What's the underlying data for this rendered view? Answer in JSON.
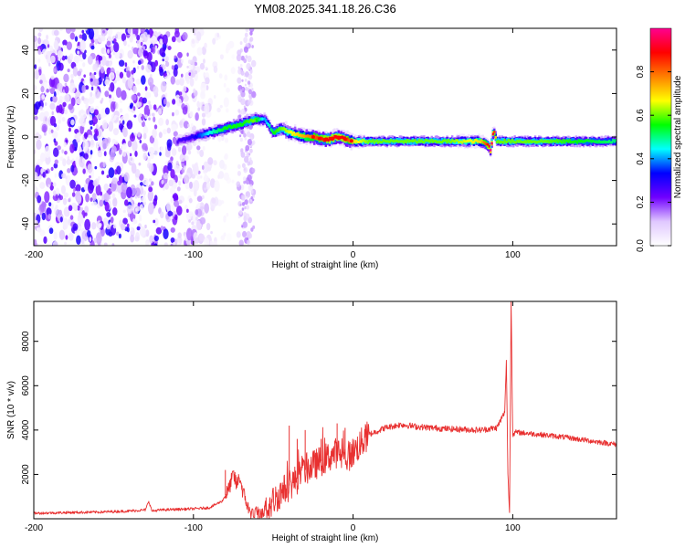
{
  "title": "YM08.2025.341.18.26.C36",
  "chart_data": [
    {
      "type": "heatmap",
      "xlabel": "Height of straight line (km)",
      "ylabel": "Frequency (Hz)",
      "xlim": [
        -200,
        165
      ],
      "ylim": [
        -50,
        50
      ],
      "xticks": [
        -200,
        -100,
        0,
        100
      ],
      "yticks": [
        -40,
        -20,
        0,
        20,
        40
      ],
      "colorbar": {
        "label": "Normalized spectral amplitude",
        "range": [
          0,
          1
        ],
        "ticks": [
          0,
          0.2,
          0.4,
          0.6,
          0.8
        ],
        "tick_labels": [
          "0.0",
          "0.2",
          "0.4",
          "0.6",
          "0.8"
        ],
        "colors": [
          "#ffffff",
          "#e0c8ff",
          "#7000ff",
          "#0000ff",
          "#00ffff",
          "#00ff00",
          "#ffff00",
          "#ff8000",
          "#ff0000",
          "#ff0090"
        ]
      },
      "ridge": {
        "x": [
          -110,
          -100,
          -90,
          -80,
          -70,
          -62,
          -55,
          -50,
          -45,
          -40,
          -35,
          -30,
          -25,
          -20,
          -15,
          -10,
          -5,
          0,
          10,
          30,
          60,
          80,
          85,
          86,
          88,
          90,
          100,
          120,
          165
        ],
        "freq": [
          -2,
          0,
          2,
          4,
          6,
          8,
          8,
          2,
          4,
          2,
          1,
          0,
          0,
          -1,
          -1,
          0,
          -1,
          -2,
          -2,
          -2,
          -2,
          -2,
          -4,
          -6,
          3,
          -2,
          -2,
          -2,
          -2
        ],
        "amplitude": [
          0.25,
          0.3,
          0.45,
          0.55,
          0.55,
          0.6,
          0.4,
          0.55,
          0.6,
          0.65,
          0.7,
          0.75,
          0.8,
          0.85,
          0.9,
          0.9,
          0.9,
          0.7,
          0.6,
          0.6,
          0.6,
          0.7,
          0.9,
          1.0,
          0.9,
          0.6,
          0.6,
          0.6,
          0.5
        ]
      },
      "noise_region_x": [
        -200,
        -90
      ],
      "noise_band_x": [
        -72,
        -62
      ]
    },
    {
      "type": "line",
      "xlabel": "Height of straight line (km)",
      "ylabel": "SNR (10 * v/v)",
      "xlim": [
        -200,
        165
      ],
      "ylim": [
        0,
        9800
      ],
      "xticks": [
        -200,
        -100,
        0,
        100
      ],
      "yticks": [
        2000,
        4000,
        6000,
        8000
      ],
      "series": [
        {
          "name": "SNR",
          "color": "#e83030",
          "x": [
            -200,
            -180,
            -160,
            -140,
            -130,
            -128,
            -126,
            -120,
            -100,
            -90,
            -82,
            -78,
            -75,
            -73,
            -71,
            -69,
            -67,
            -65,
            -60,
            -55,
            -50,
            -45,
            -40,
            -35,
            -30,
            -25,
            -20,
            -15,
            -10,
            -5,
            0,
            5,
            10,
            20,
            30,
            40,
            60,
            80,
            90,
            95,
            96,
            97,
            98,
            99,
            100,
            102,
            110,
            130,
            150,
            165
          ],
          "y": [
            250,
            280,
            300,
            350,
            400,
            800,
            350,
            400,
            450,
            500,
            800,
            1300,
            2000,
            1500,
            1900,
            1200,
            800,
            300,
            200,
            300,
            800,
            1200,
            1500,
            1800,
            2200,
            2400,
            2600,
            2800,
            3000,
            2700,
            3000,
            3400,
            3800,
            4100,
            4250,
            4150,
            4050,
            4000,
            4100,
            4800,
            7200,
            2000,
            200,
            9800,
            3800,
            3900,
            3850,
            3700,
            3500,
            3350
          ]
        }
      ],
      "spikes": [
        {
          "x": -80,
          "y": 2200
        },
        {
          "x": -74,
          "y": 2100
        },
        {
          "x": -40,
          "y": 4200
        },
        {
          "x": -35,
          "y": 3600
        },
        {
          "x": -30,
          "y": 4000
        },
        {
          "x": -20,
          "y": 3600
        },
        {
          "x": -10,
          "y": 4300
        },
        {
          "x": -5,
          "y": 4100
        }
      ]
    }
  ]
}
